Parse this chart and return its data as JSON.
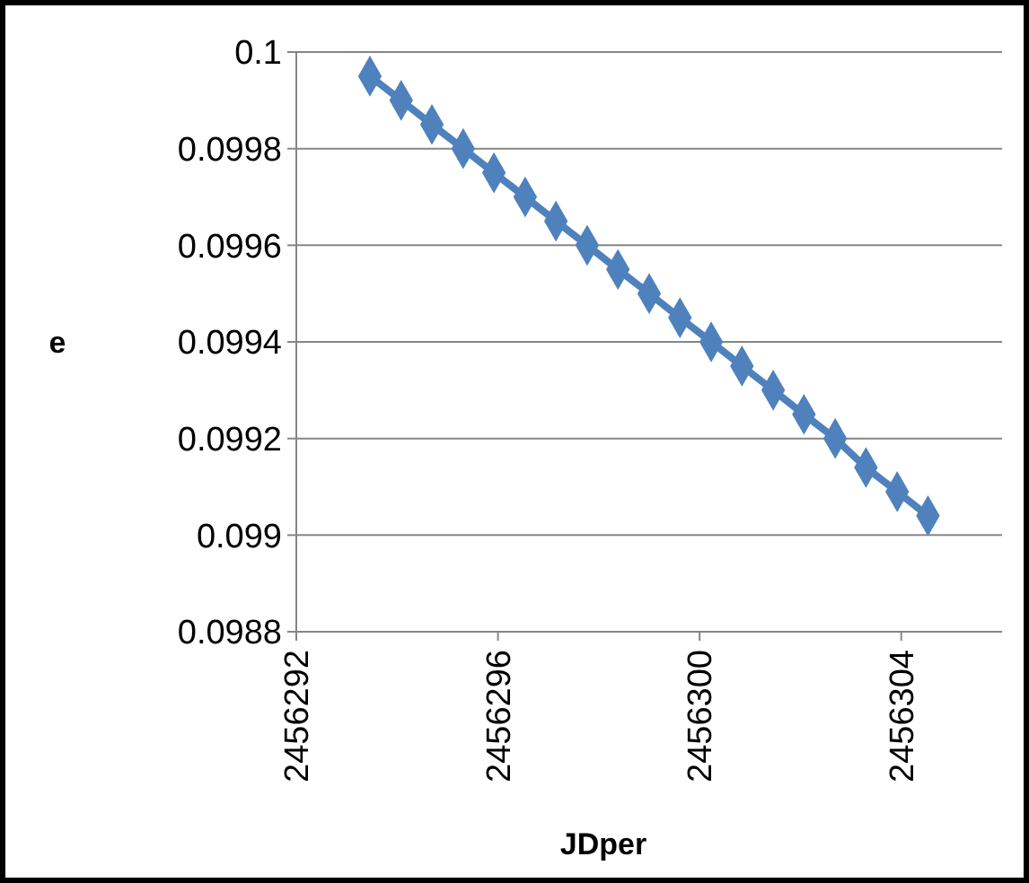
{
  "chart_data": {
    "type": "line",
    "xlabel": "JDper",
    "ylabel": "e",
    "x": [
      2456293.46,
      2456294.08,
      2456294.69,
      2456295.31,
      2456295.92,
      2456296.54,
      2456297.15,
      2456297.77,
      2456298.38,
      2456299.0,
      2456299.61,
      2456300.23,
      2456300.84,
      2456301.46,
      2456302.07,
      2456302.69,
      2456303.3,
      2456303.92,
      2456304.53
    ],
    "series": [
      {
        "color": "#4f81bd",
        "values": [
          0.09995,
          0.0999,
          0.09985,
          0.0998,
          0.09975,
          0.0997,
          0.09965,
          0.0996,
          0.09955,
          0.0995,
          0.09945,
          0.0994,
          0.09935,
          0.0993,
          0.09925,
          0.0992,
          0.09914,
          0.09909,
          0.09904
        ]
      }
    ],
    "xlim": [
      2456292,
      2456306
    ],
    "xticks": [
      2456292,
      2456296,
      2456300,
      2456304
    ],
    "ylim": [
      0.0988,
      0.1
    ],
    "yticks": [
      {
        "value": 0.0988,
        "label": "0.0988"
      },
      {
        "value": 0.099,
        "label": "0.099"
      },
      {
        "value": 0.0992,
        "label": "0.0992"
      },
      {
        "value": 0.0994,
        "label": "0.0994"
      },
      {
        "value": 0.0996,
        "label": "0.0996"
      },
      {
        "value": 0.0998,
        "label": "0.0998"
      },
      {
        "value": 0.1,
        "label": "0.1"
      }
    ],
    "grid": "y",
    "marker": "diamond",
    "line_style": "solid"
  }
}
